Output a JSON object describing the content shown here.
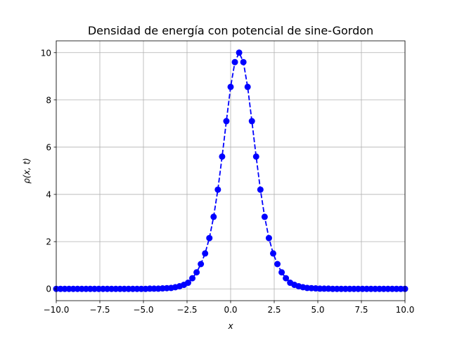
{
  "chart_data": {
    "type": "line",
    "title": "Densidad de energía con potencial de sine-Gordon",
    "xlabel": "x",
    "ylabel": "ρ(x, t)",
    "xlim": [
      -10,
      10
    ],
    "ylim": [
      -0.5,
      10.5
    ],
    "xticks": [
      -10,
      -7.5,
      -5,
      -2.5,
      0,
      2.5,
      5,
      7.5,
      10
    ],
    "xtick_labels": [
      "−10.0",
      "−7.5",
      "−5.0",
      "−2.5",
      "0.0",
      "2.5",
      "5.0",
      "7.5",
      "10.0"
    ],
    "yticks": [
      0,
      2,
      4,
      6,
      8,
      10
    ],
    "ytick_labels": [
      "0",
      "2",
      "4",
      "6",
      "8",
      "10"
    ],
    "grid": true,
    "series": [
      {
        "color": "#0000ff",
        "line_style": "dashed",
        "marker": "circle",
        "x": [
          -10.0,
          -9.7561,
          -9.5122,
          -9.2683,
          -9.0244,
          -8.7805,
          -8.5366,
          -8.2927,
          -8.0488,
          -7.8049,
          -7.561,
          -7.3171,
          -7.0732,
          -6.8293,
          -6.5854,
          -6.3415,
          -6.0976,
          -5.8537,
          -5.6098,
          -5.3659,
          -5.122,
          -4.878,
          -4.6341,
          -4.3902,
          -4.1463,
          -3.9024,
          -3.6585,
          -3.4146,
          -3.1707,
          -2.9268,
          -2.6829,
          -2.439,
          -2.1951,
          -1.9512,
          -1.7073,
          -1.4634,
          -1.2195,
          -0.9756,
          -0.7317,
          -0.4878,
          -0.2439,
          0.0,
          0.2439,
          0.4878,
          0.7317,
          0.9756,
          1.2195,
          1.4634,
          1.7073,
          1.9512,
          2.1951,
          2.439,
          2.6829,
          2.9268,
          3.1707,
          3.4146,
          3.6585,
          3.9024,
          4.1463,
          4.3902,
          4.6341,
          4.878,
          5.122,
          5.3659,
          5.6098,
          5.8537,
          6.0976,
          6.3415,
          6.5854,
          6.8293,
          7.0732,
          7.3171,
          7.561,
          7.8049,
          8.0488,
          8.2927,
          8.5366,
          8.7805,
          9.0244,
          9.2683,
          9.5122,
          9.7561,
          10.0
        ],
        "y": [
          0.0,
          0.0,
          0.0,
          0.0,
          0.0,
          0.0,
          0.0,
          0.0,
          0.0,
          0.0,
          0.0,
          0.0,
          0.0,
          0.0,
          0.0,
          0.0,
          0.0,
          0.0,
          0.0,
          0.0,
          0.0,
          0.0,
          0.01,
          0.01,
          0.01,
          0.02,
          0.03,
          0.04,
          0.07,
          0.11,
          0.17,
          0.26,
          0.45,
          0.7,
          1.05,
          1.5,
          2.15,
          3.05,
          4.2,
          5.6,
          7.1,
          8.55,
          9.6,
          10.0,
          9.6,
          8.55,
          7.1,
          5.6,
          4.2,
          3.05,
          2.15,
          1.5,
          1.05,
          0.7,
          0.45,
          0.26,
          0.17,
          0.11,
          0.07,
          0.04,
          0.03,
          0.02,
          0.01,
          0.01,
          0.01,
          0.0,
          0.0,
          0.0,
          0.0,
          0.0,
          0.0,
          0.0,
          0.0,
          0.0,
          0.0,
          0.0,
          0.0,
          0.0,
          0.0,
          0.0,
          0.0,
          0.0,
          0.0
        ]
      }
    ]
  }
}
